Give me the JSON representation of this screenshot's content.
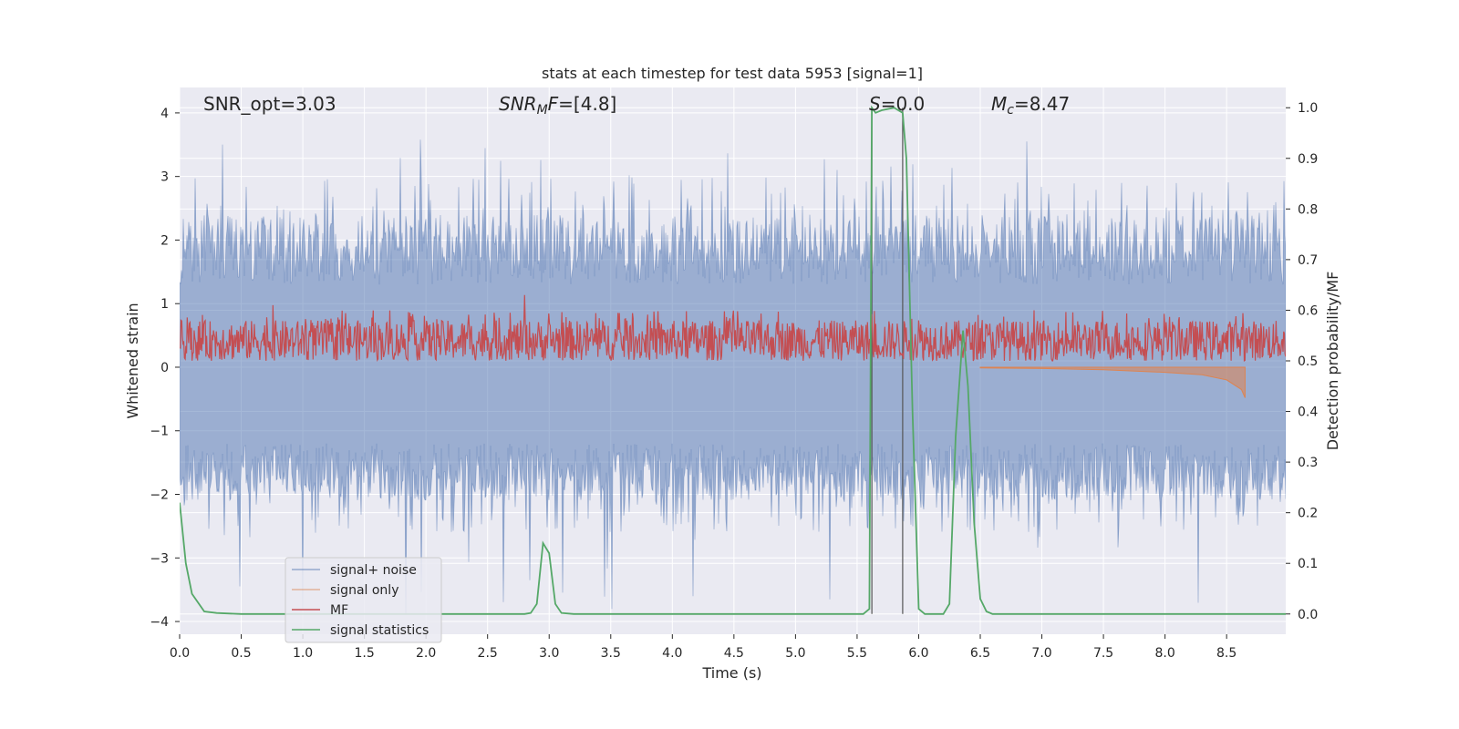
{
  "chart_data": {
    "type": "line",
    "title": "stats at each timestep for test data 5953 [signal=1]",
    "xlabel": "Time (s)",
    "ylabel": "Whitened strain",
    "y2label": "Detection probability/MF",
    "xlim": [
      0,
      8.98
    ],
    "ylim": [
      -4.2,
      4.4
    ],
    "y2lim": [
      -0.04,
      1.04
    ],
    "xticks": [
      "0.0",
      "0.5",
      "1.0",
      "1.5",
      "2.0",
      "2.5",
      "3.0",
      "3.5",
      "4.0",
      "4.5",
      "5.0",
      "5.5",
      "6.0",
      "6.5",
      "7.0",
      "7.5",
      "8.0",
      "8.5"
    ],
    "yticks": [
      "−4",
      "−3",
      "−2",
      "−1",
      "0",
      "1",
      "2",
      "3",
      "4"
    ],
    "y2ticks": [
      "0.0",
      "0.1",
      "0.2",
      "0.3",
      "0.4",
      "0.5",
      "0.6",
      "0.7",
      "0.8",
      "0.9",
      "1.0"
    ],
    "grid": true,
    "legend_position": "lower-left",
    "annotations": {
      "snr_opt": "SNR_opt=3.03",
      "snr_mf_sym": "SNR",
      "snr_mf_sub": "M",
      "snr_mf_rest": "F",
      "snr_mf_val": "=[4.8]",
      "s_sym": "S",
      "s_val": "=0.0",
      "mc_sym": "M",
      "mc_sub": "c",
      "mc_val": "=8.47"
    },
    "vlines_x": [
      5.62,
      5.87
    ],
    "series": [
      {
        "name": "signal+ noise",
        "color": "#4c72b0",
        "axis": "left",
        "kind": "noise",
        "description_values": {
          "band_half_width": 1.0,
          "typical_peak": 2.6,
          "max_peak": 3.6,
          "min_trough": -3.9
        }
      },
      {
        "name": "signal only",
        "color": "#dd8452",
        "axis": "left",
        "kind": "chirp",
        "x": [
          6.5,
          7.0,
          7.5,
          8.0,
          8.3,
          8.5,
          8.62,
          8.65
        ],
        "y": [
          -0.01,
          -0.02,
          -0.04,
          -0.08,
          -0.12,
          -0.2,
          -0.35,
          -0.48
        ]
      },
      {
        "name": "MF",
        "color": "#c44e52",
        "axis": "right",
        "kind": "mf",
        "band": [
          0.5,
          0.58
        ],
        "spikes": [
          [
            0.76,
            0.61
          ],
          [
            2.8,
            0.63
          ],
          [
            6.0,
            0.58
          ]
        ]
      },
      {
        "name": "signal statistics",
        "color": "#55a868",
        "axis": "right",
        "x": [
          0.0,
          0.05,
          0.1,
          0.2,
          0.3,
          0.5,
          1.0,
          2.0,
          2.8,
          2.85,
          2.9,
          2.95,
          3.0,
          3.05,
          3.1,
          3.2,
          3.3,
          4.0,
          5.0,
          5.55,
          5.6,
          5.62,
          5.65,
          5.7,
          5.8,
          5.87,
          5.9,
          5.95,
          6.0,
          6.05,
          6.1,
          6.2,
          6.25,
          6.3,
          6.36,
          6.4,
          6.45,
          6.5,
          6.55,
          6.6,
          7.0,
          8.0,
          8.98
        ],
        "y": [
          0.22,
          0.1,
          0.04,
          0.005,
          0.002,
          0.0,
          0.0,
          0.0,
          0.0,
          0.002,
          0.02,
          0.14,
          0.12,
          0.02,
          0.002,
          0.0,
          0.0,
          0.0,
          0.0,
          0.0,
          0.01,
          1.0,
          0.99,
          0.995,
          1.0,
          0.99,
          0.9,
          0.4,
          0.01,
          0.0,
          0.0,
          0.0,
          0.02,
          0.35,
          0.56,
          0.45,
          0.18,
          0.03,
          0.005,
          0.0,
          0.0,
          0.0,
          0.0
        ]
      }
    ]
  }
}
